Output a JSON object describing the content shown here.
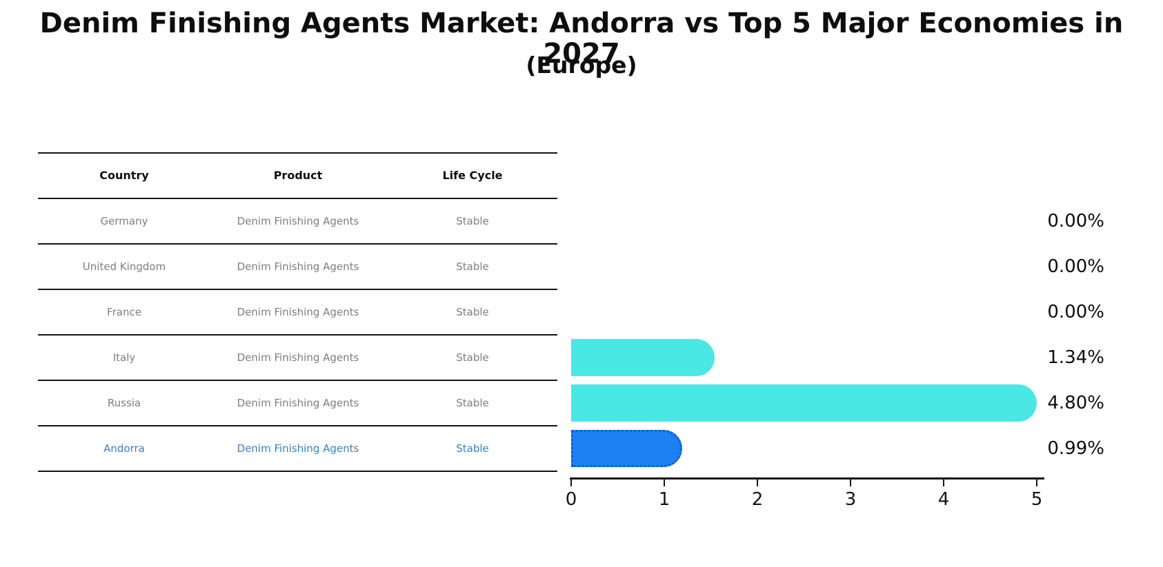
{
  "header": {
    "title": "Denim Finishing Agents Market: Andorra vs Top 5 Major Economies in 2027",
    "subtitle": "(Europe)"
  },
  "table": {
    "columns": [
      "Country",
      "Product",
      "Life Cycle"
    ],
    "rows": [
      {
        "country": "Germany",
        "product": "Denim Finishing Agents",
        "life_cycle": "Stable",
        "highlighted": false
      },
      {
        "country": "United Kingdom",
        "product": "Denim Finishing Agents",
        "life_cycle": "Stable",
        "highlighted": false
      },
      {
        "country": "France",
        "product": "Denim Finishing Agents",
        "life_cycle": "Stable",
        "highlighted": false
      },
      {
        "country": "Italy",
        "product": "Denim Finishing Agents",
        "life_cycle": "Stable",
        "highlighted": false
      },
      {
        "country": "Russia",
        "product": "Denim Finishing Agents",
        "life_cycle": "Stable",
        "highlighted": false
      },
      {
        "country": "Andorra",
        "product": "Denim Finishing Agents",
        "life_cycle": "Stable",
        "highlighted": true
      }
    ]
  },
  "chart_data": {
    "type": "bar",
    "orientation": "horizontal",
    "title": "Denim Finishing Agents Market: Andorra vs Top 5 Major Economies in 2027",
    "subtitle": "(Europe)",
    "categories": [
      "Germany",
      "United Kingdom",
      "France",
      "Italy",
      "Russia",
      "Andorra"
    ],
    "values": [
      0.0,
      0.0,
      0.0,
      1.34,
      4.8,
      0.99
    ],
    "value_labels": [
      "0.00%",
      "0.00%",
      "0.00%",
      "1.34%",
      "4.80%",
      "0.99%"
    ],
    "xlim": [
      0,
      5
    ],
    "x_ticks": [
      "0",
      "1",
      "2",
      "3",
      "4",
      "5"
    ],
    "grid": false,
    "legend": "none",
    "bar_color": "#49e8e4",
    "highlight_bar_color": "#1b80f0",
    "highlight_index": 5,
    "highlight_text_color": "#3480c6",
    "text_color": "#7d7d7d"
  }
}
